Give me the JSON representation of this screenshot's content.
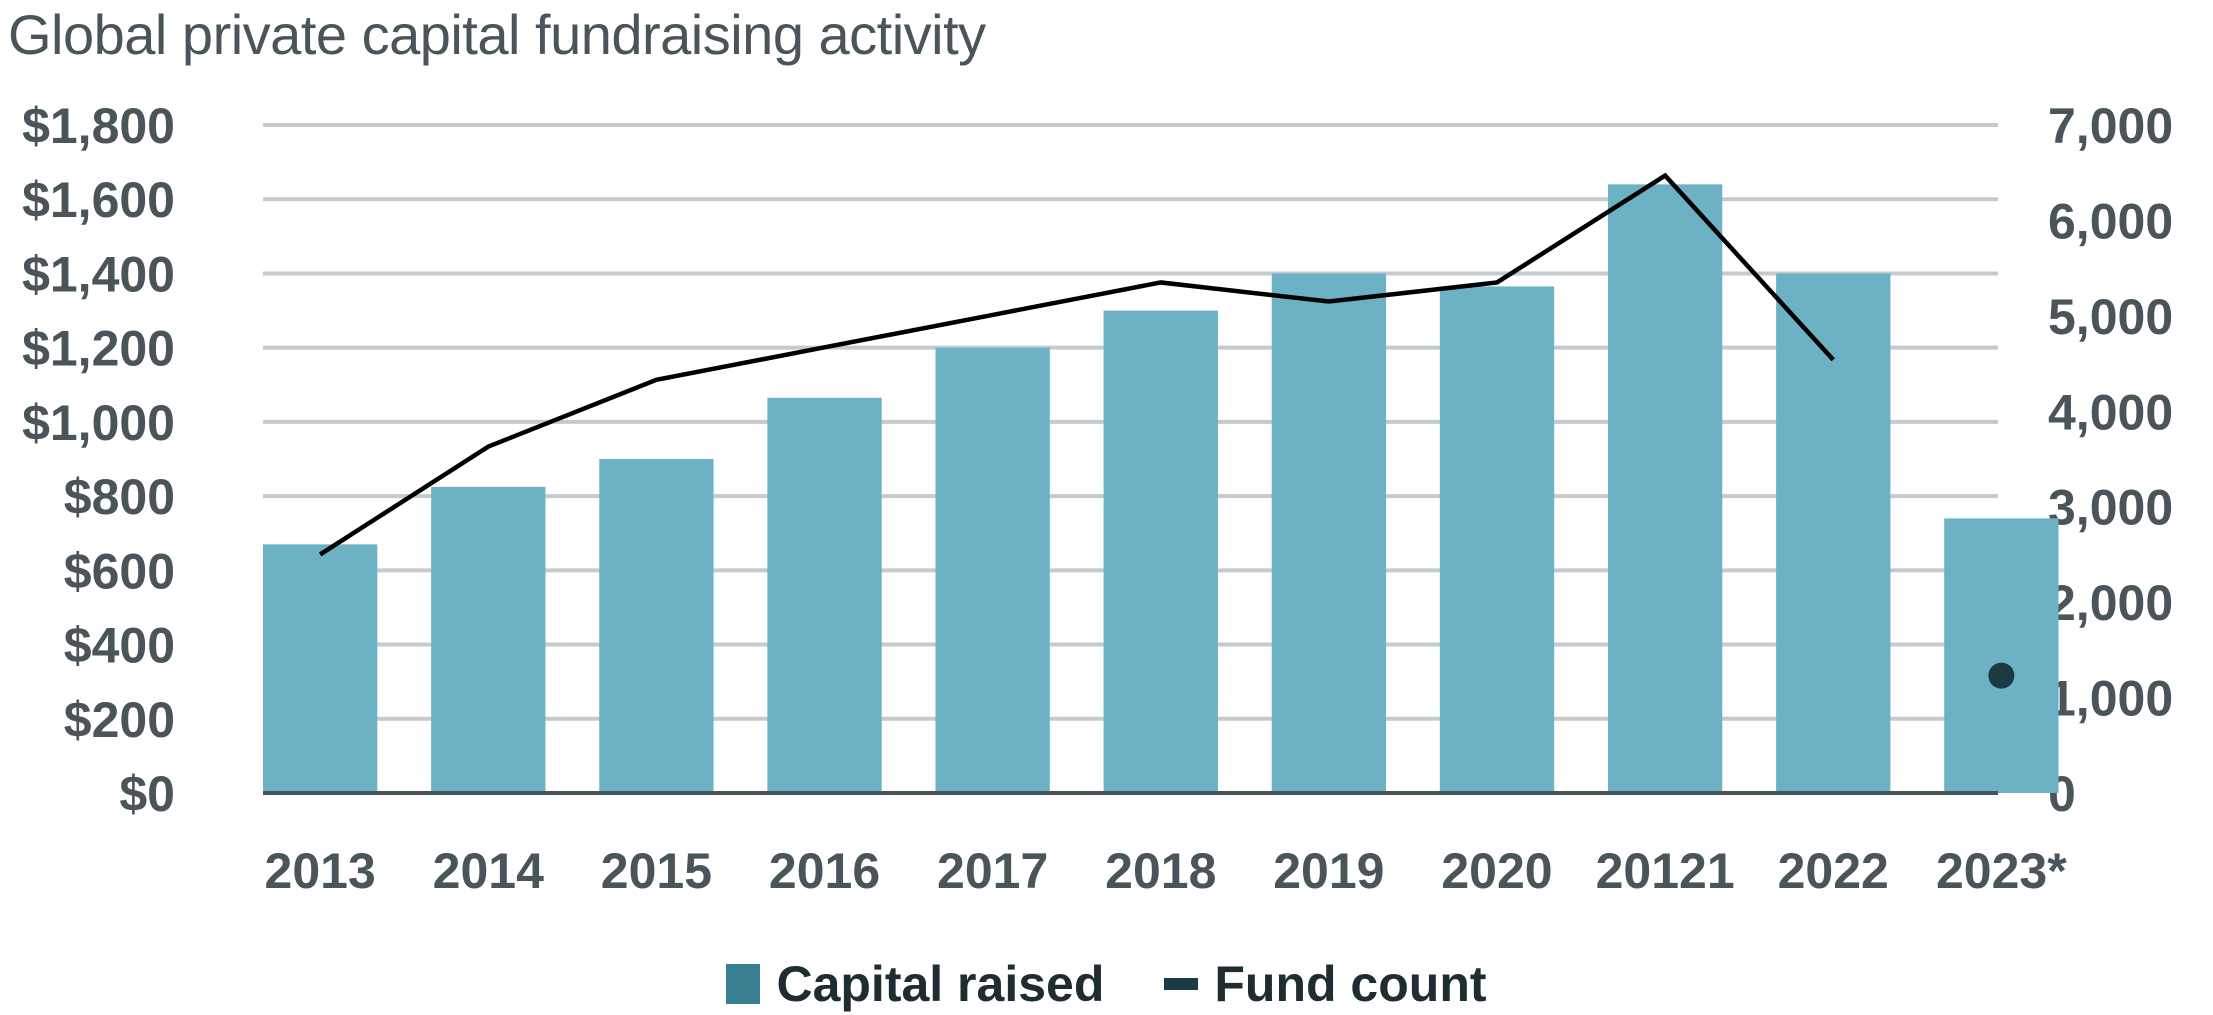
{
  "chart_data": {
    "type": "bar",
    "title": "Global private capital fundraising activity",
    "categories": [
      "2013",
      "2014",
      "2015",
      "2016",
      "2017",
      "2018",
      "2019",
      "2020",
      "20121",
      "2022",
      "2023*"
    ],
    "series": [
      {
        "name": "Capital raised",
        "type": "bar",
        "axis": "left",
        "color": "#6cb2c4",
        "legend_color": "#3a8093",
        "values": [
          670,
          825,
          900,
          1065,
          1200,
          1300,
          1400,
          1365,
          1640,
          1400,
          740
        ]
      },
      {
        "name": "Fund count",
        "type": "line",
        "axis": "right",
        "color": "#000000",
        "legend_color": "#1c3a44",
        "values": [
          2500,
          3630,
          4330,
          4670,
          5010,
          5350,
          5150,
          5350,
          6470,
          4540,
          null
        ],
        "marker_2023": 1230
      }
    ],
    "left_axis": {
      "ylim": [
        0,
        1800
      ],
      "ticks": [
        "$0",
        "$200",
        "$400",
        "$600",
        "$800",
        "$1,000",
        "$1,200",
        "$1,400",
        "$1,600",
        "$1,800"
      ]
    },
    "right_axis": {
      "ylim": [
        0,
        7000
      ],
      "ticks": [
        "0",
        "1,000",
        "2,000",
        "3,000",
        "4,000",
        "5,000",
        "6,000",
        "7,000"
      ]
    },
    "grid": true,
    "legend_placement": "bottom-center"
  }
}
